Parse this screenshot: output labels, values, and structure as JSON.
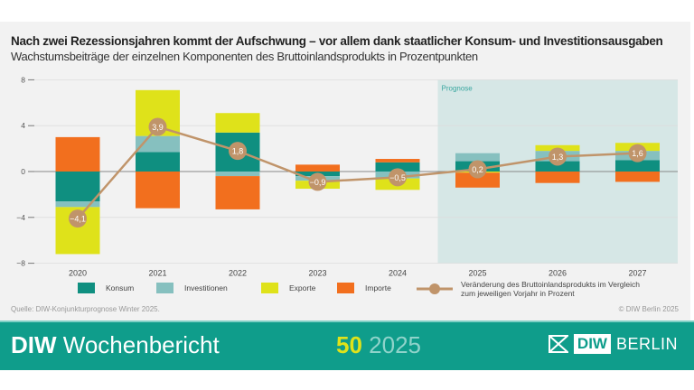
{
  "header": {
    "title": "Nach zwei Rezessionsjahren kommt der Aufschwung – vor allem dank staatlicher Konsum- und Investitionsausgaben",
    "subtitle": "Wachstumsbeiträge der einzelnen Komponenten des Bruttoinlandsprodukts in Prozentpunkten"
  },
  "chart_data": {
    "type": "bar",
    "stacked": true,
    "categories": [
      "2020",
      "2021",
      "2022",
      "2023",
      "2024",
      "2025",
      "2026",
      "2027"
    ],
    "ylim": [
      -8,
      8
    ],
    "yticks": [
      8,
      4,
      0,
      -4,
      -8
    ],
    "ytick_labels": [
      "8",
      "4",
      "0",
      "−4",
      "−8"
    ],
    "grid": true,
    "forecast_label": "Prognose",
    "forecast_from": "2025",
    "series": [
      {
        "name": "Konsum",
        "color": "#0f8f80",
        "values": [
          -2.6,
          1.7,
          3.4,
          -0.4,
          0.8,
          0.9,
          0.9,
          1.0
        ]
      },
      {
        "name": "Investitionen",
        "color": "#86c0bf",
        "values": [
          -0.5,
          1.4,
          -0.4,
          -0.4,
          -0.6,
          0.7,
          0.9,
          0.8
        ]
      },
      {
        "name": "Exporte",
        "color": "#dfe21a",
        "values": [
          -4.1,
          4.0,
          1.7,
          -0.7,
          -1.0,
          -0.1,
          0.5,
          0.7
        ]
      },
      {
        "name": "Importe",
        "color": "#f26f1e",
        "values": [
          3.0,
          -3.2,
          -2.9,
          0.6,
          0.3,
          -1.3,
          -1.0,
          -0.9
        ]
      }
    ],
    "line": {
      "name": "Veränderung des Bruttoinlandsprodukts im Vergleich zum jeweiligen Vorjahr in Prozent",
      "name_line1": "Veränderung des Bruttoinlandsprodukts im Vergleich",
      "name_line2": "zum jeweiligen Vorjahr in Prozent",
      "color": "#c0946a",
      "values": [
        -4.1,
        3.9,
        1.8,
        -0.9,
        -0.5,
        0.2,
        1.3,
        1.6
      ],
      "labels": [
        "−4,1",
        "3,9",
        "1,8",
        "−0,9",
        "−0,5",
        "0,2",
        "1,3",
        "1,6"
      ]
    },
    "legend_position": "bottom"
  },
  "footer": {
    "source": "Quelle: DIW-Konjunkturprognose Winter 2025.",
    "copyright": "© DIW Berlin 2025",
    "brand_bold": "DIW",
    "brand_rest": "Wochenbericht",
    "issue_number": "50",
    "issue_year": "2025",
    "logo_diw": "DIW",
    "logo_berlin": "BERLIN"
  }
}
